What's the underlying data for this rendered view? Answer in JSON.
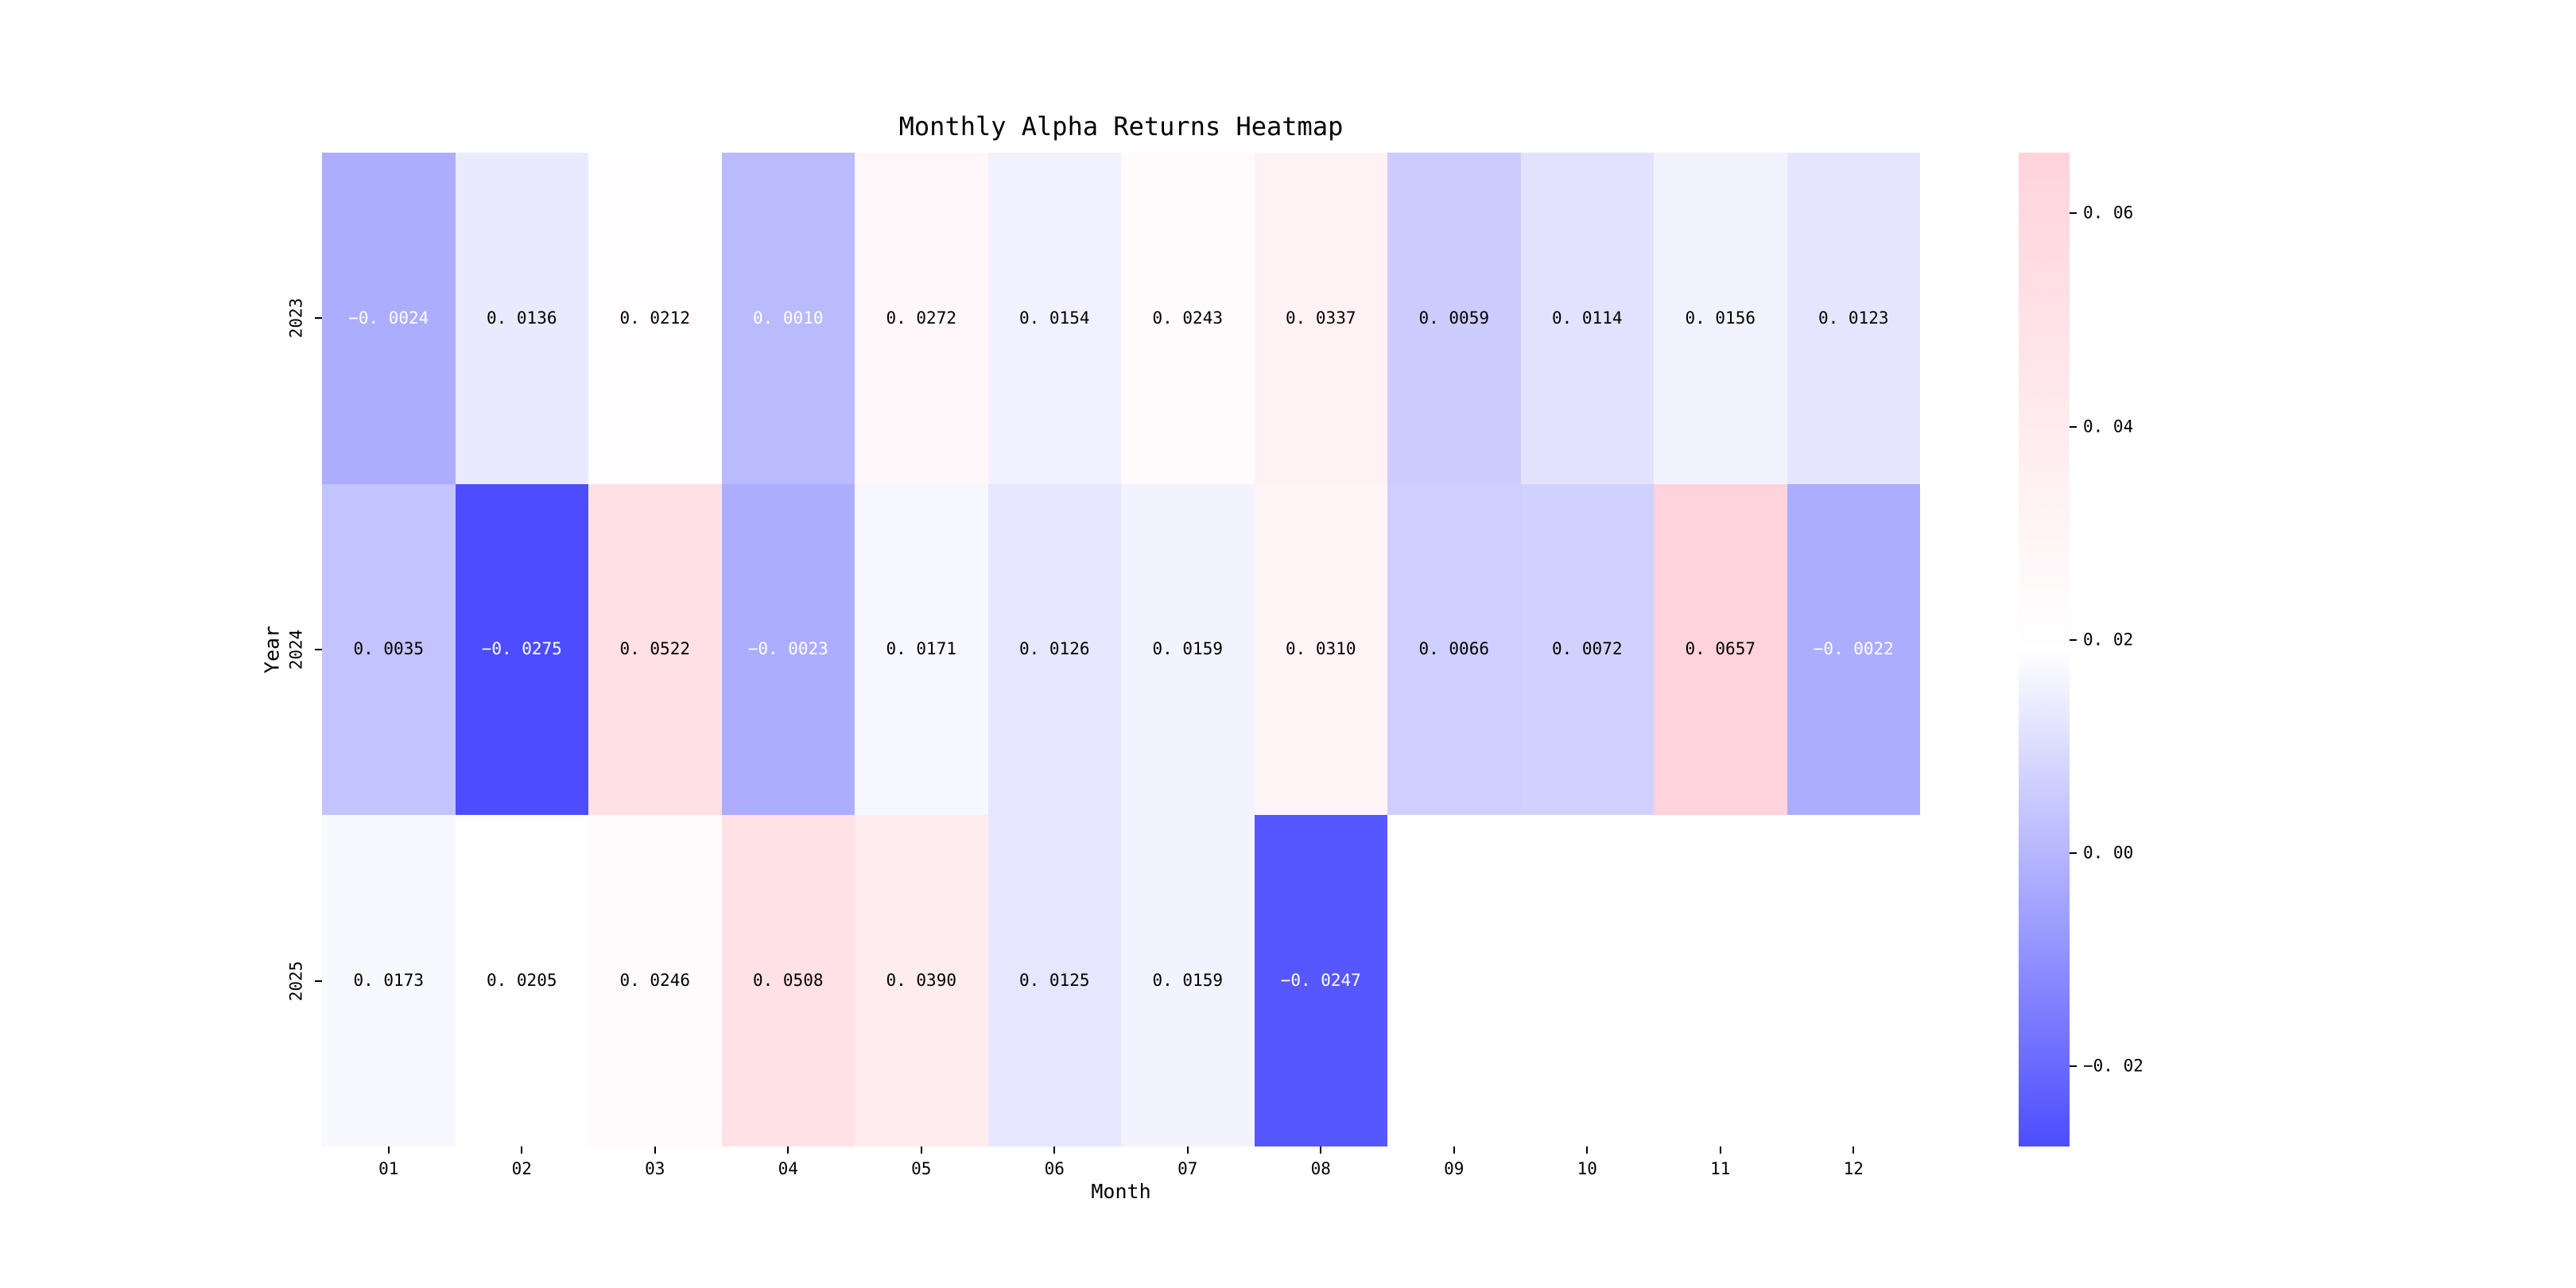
{
  "title": "Monthly Alpha Returns Heatmap",
  "chart_data": {
    "type": "heatmap",
    "title": "Monthly Alpha Returns Heatmap",
    "xlabel": "Month",
    "ylabel": "Year",
    "x_categories": [
      "01",
      "02",
      "03",
      "04",
      "05",
      "06",
      "07",
      "08",
      "09",
      "10",
      "11",
      "12"
    ],
    "y_categories": [
      "2023",
      "2024",
      "2025"
    ],
    "values": [
      [
        -0.0024,
        0.0136,
        0.0212,
        0.001,
        0.0272,
        0.0154,
        0.0243,
        0.0337,
        0.0059,
        0.0114,
        0.0156,
        0.0123
      ],
      [
        0.0035,
        -0.0275,
        0.0522,
        -0.0023,
        0.0171,
        0.0126,
        0.0159,
        0.031,
        0.0066,
        0.0072,
        0.0657,
        -0.0022
      ],
      [
        0.0173,
        0.0205,
        0.0246,
        0.0508,
        0.039,
        0.0125,
        0.0159,
        -0.0247,
        null,
        null,
        null,
        null
      ]
    ],
    "annotation_decimals": 4,
    "colormap": {
      "low": "#0000FF",
      "mid": "#FFFFFF",
      "high": "#FFC0CB",
      "alpha": 0.7,
      "low_displayed": "#4C4CFF",
      "high_displayed": "#FFD3DB",
      "vmin": -0.0275,
      "vmax": 0.0657,
      "text_luminance_threshold": 0.408
    },
    "colorbar_ticks": [
      0.06,
      0.04,
      0.02,
      0.0,
      -0.02
    ],
    "colorbar_tick_decimals": 2,
    "grid": false,
    "legend": "colorbar-right",
    "empty_cells": "white"
  }
}
